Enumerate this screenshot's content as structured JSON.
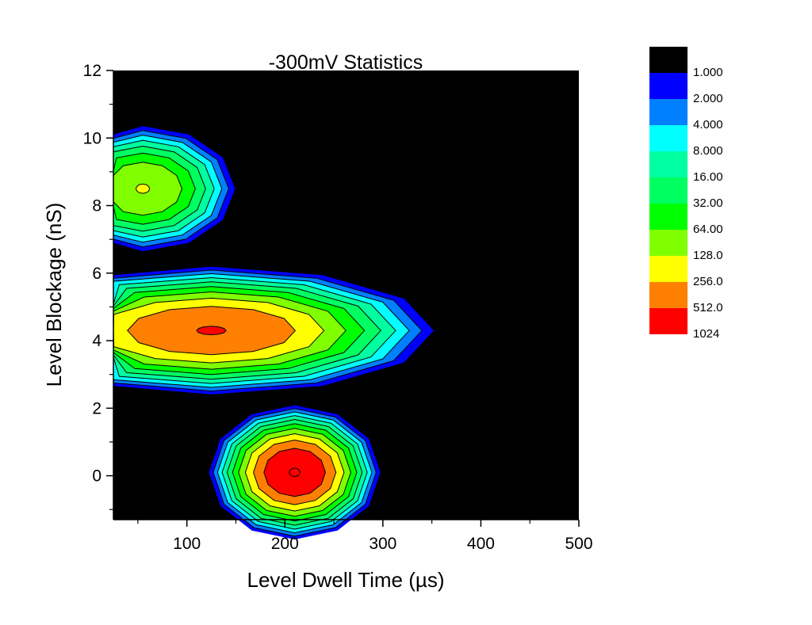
{
  "chart_data": {
    "type": "contour",
    "title": "-300mV Statistics",
    "xlabel": "Level Dwell Time (µs)",
    "ylabel": "Level Blockage (nS)",
    "xlim": [
      25,
      500
    ],
    "ylim": [
      -1.3,
      12
    ],
    "x_ticks": [
      100,
      200,
      300,
      400,
      500
    ],
    "y_ticks": [
      0,
      2,
      4,
      6,
      8,
      10,
      12
    ],
    "x_tick_labels": [
      "100",
      "200",
      "300",
      "400",
      "500"
    ],
    "y_tick_labels": [
      "0",
      "2",
      "4",
      "6",
      "8",
      "10",
      "12"
    ],
    "background_color": "#000000",
    "levels": [
      1,
      2,
      4,
      8,
      16,
      32,
      64,
      128,
      256,
      512,
      1024
    ],
    "legend": {
      "placement": "right",
      "labels": [
        "1.000",
        "2.000",
        "4.000",
        "8.000",
        "16.00",
        "32.00",
        "64.00",
        "128.0",
        "256.0",
        "512.0",
        "1024"
      ],
      "colors": [
        "#000000",
        "#0000ff",
        "#0080ff",
        "#00ffff",
        "#00ffa0",
        "#00ff60",
        "#00ff00",
        "#80ff00",
        "#ffff00",
        "#ff8000",
        "#ff0000"
      ]
    },
    "peaks": [
      {
        "x": 55,
        "y": 8.5,
        "peak_level": 128,
        "sigma_x": 28,
        "sigma_y": 0.55
      },
      {
        "x": 125,
        "y": 4.3,
        "peak_level": 512,
        "sigma_x": 60,
        "sigma_y": 0.5
      },
      {
        "x": 210,
        "y": 0.1,
        "peak_level": 1024,
        "sigma_x": 22,
        "sigma_y": 0.5
      }
    ]
  }
}
